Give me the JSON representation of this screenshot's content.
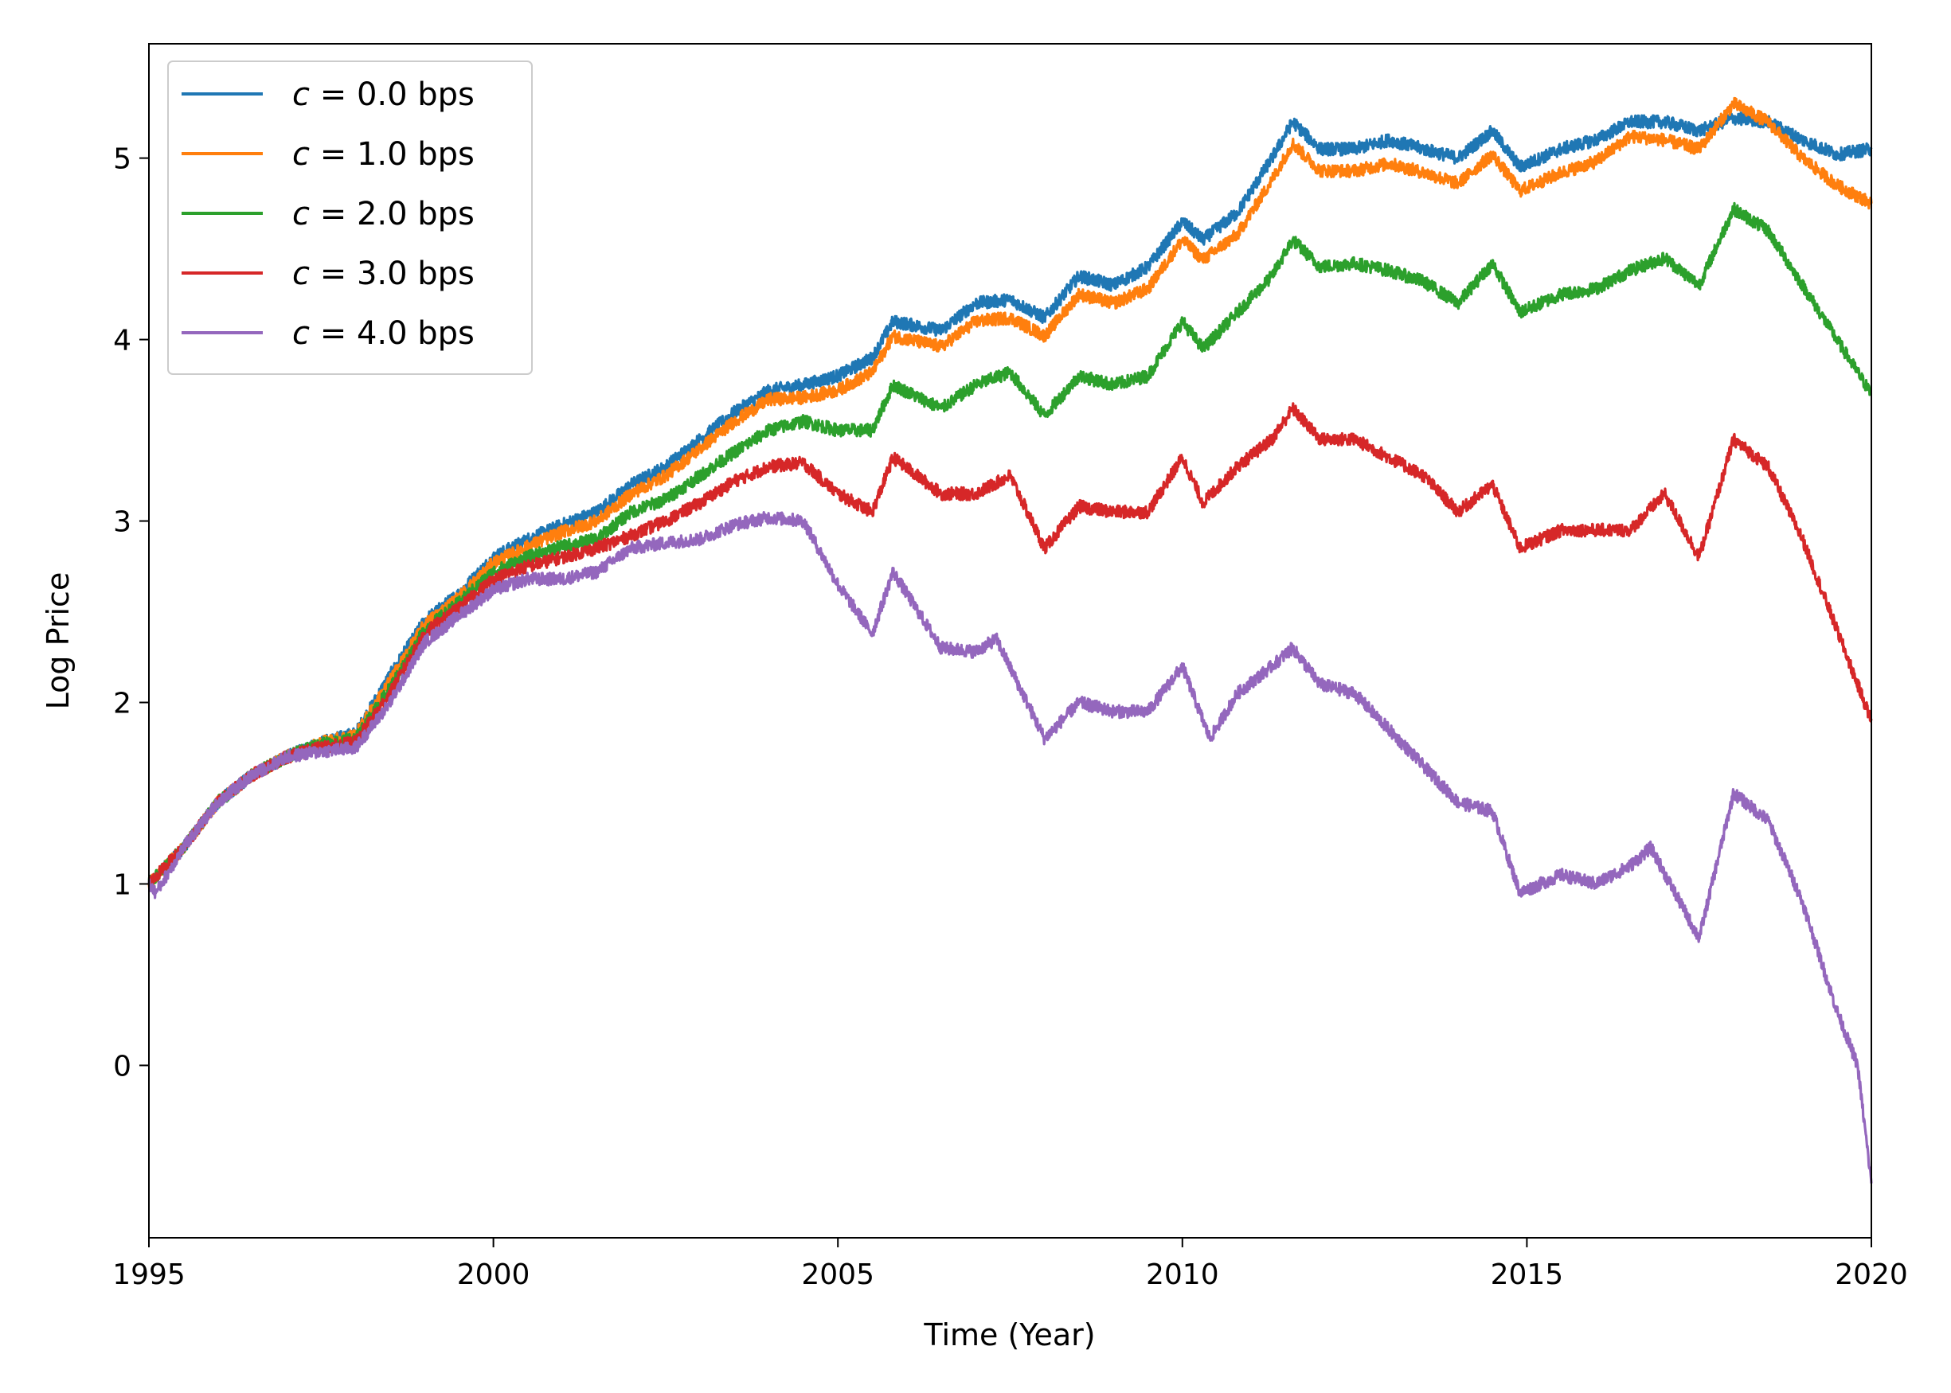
{
  "chart_data": {
    "type": "line",
    "title": "",
    "xlabel": "Time (Year)",
    "ylabel": "Log Price",
    "xlim": [
      1995,
      2020
    ],
    "ylim": [
      -0.95,
      5.63
    ],
    "xticks": [
      "1995",
      "2000",
      "2005",
      "2010",
      "2015",
      "2020"
    ],
    "yticks": [
      "0",
      "1",
      "2",
      "3",
      "4",
      "5"
    ],
    "grid": false,
    "legend_position": "top-left",
    "series": [
      {
        "name": "c = 0.0 bps",
        "var": "c",
        "value_text": "= 0.0 bps",
        "color": "#1f77b4",
        "points": [
          [
            1995.0,
            1.0
          ],
          [
            1995.5,
            1.2
          ],
          [
            1996.0,
            1.45
          ],
          [
            1996.5,
            1.6
          ],
          [
            1997.0,
            1.7
          ],
          [
            1997.5,
            1.78
          ],
          [
            1998.0,
            1.83
          ],
          [
            1998.5,
            2.15
          ],
          [
            1999.0,
            2.45
          ],
          [
            1999.5,
            2.6
          ],
          [
            2000.0,
            2.8
          ],
          [
            2000.5,
            2.9
          ],
          [
            2001.0,
            2.98
          ],
          [
            2001.5,
            3.05
          ],
          [
            2002.0,
            3.2
          ],
          [
            2002.5,
            3.3
          ],
          [
            2003.0,
            3.45
          ],
          [
            2003.5,
            3.6
          ],
          [
            2004.0,
            3.72
          ],
          [
            2004.5,
            3.75
          ],
          [
            2005.0,
            3.8
          ],
          [
            2005.5,
            3.9
          ],
          [
            2005.8,
            4.1
          ],
          [
            2006.5,
            4.05
          ],
          [
            2007.0,
            4.2
          ],
          [
            2007.5,
            4.22
          ],
          [
            2008.0,
            4.12
          ],
          [
            2008.5,
            4.35
          ],
          [
            2009.0,
            4.3
          ],
          [
            2009.5,
            4.4
          ],
          [
            2010.0,
            4.65
          ],
          [
            2010.3,
            4.55
          ],
          [
            2010.8,
            4.7
          ],
          [
            2011.3,
            5.0
          ],
          [
            2011.6,
            5.2
          ],
          [
            2012.0,
            5.05
          ],
          [
            2012.5,
            5.05
          ],
          [
            2013.0,
            5.1
          ],
          [
            2013.5,
            5.05
          ],
          [
            2014.0,
            5.0
          ],
          [
            2014.5,
            5.15
          ],
          [
            2014.9,
            4.95
          ],
          [
            2015.5,
            5.05
          ],
          [
            2016.0,
            5.1
          ],
          [
            2016.5,
            5.2
          ],
          [
            2017.0,
            5.2
          ],
          [
            2017.5,
            5.15
          ],
          [
            2018.0,
            5.22
          ],
          [
            2018.5,
            5.2
          ],
          [
            2019.0,
            5.1
          ],
          [
            2019.5,
            5.02
          ],
          [
            2020.0,
            5.05
          ]
        ]
      },
      {
        "name": "c = 1.0 bps",
        "var": "c",
        "value_text": "= 1.0 bps",
        "color": "#ff7f0e",
        "points": [
          [
            1995.0,
            1.0
          ],
          [
            1995.5,
            1.2
          ],
          [
            1996.0,
            1.45
          ],
          [
            1996.5,
            1.6
          ],
          [
            1997.0,
            1.7
          ],
          [
            1997.5,
            1.78
          ],
          [
            1998.0,
            1.82
          ],
          [
            1998.5,
            2.12
          ],
          [
            1999.0,
            2.43
          ],
          [
            1999.5,
            2.58
          ],
          [
            2000.0,
            2.77
          ],
          [
            2000.5,
            2.86
          ],
          [
            2001.0,
            2.94
          ],
          [
            2001.5,
            3.0
          ],
          [
            2002.0,
            3.15
          ],
          [
            2002.5,
            3.25
          ],
          [
            2003.0,
            3.4
          ],
          [
            2003.5,
            3.55
          ],
          [
            2004.0,
            3.67
          ],
          [
            2004.5,
            3.68
          ],
          [
            2005.0,
            3.72
          ],
          [
            2005.5,
            3.82
          ],
          [
            2005.8,
            4.02
          ],
          [
            2006.5,
            3.96
          ],
          [
            2007.0,
            4.1
          ],
          [
            2007.5,
            4.12
          ],
          [
            2008.0,
            4.02
          ],
          [
            2008.5,
            4.25
          ],
          [
            2009.0,
            4.2
          ],
          [
            2009.5,
            4.28
          ],
          [
            2010.0,
            4.55
          ],
          [
            2010.3,
            4.44
          ],
          [
            2010.8,
            4.58
          ],
          [
            2011.3,
            4.88
          ],
          [
            2011.6,
            5.08
          ],
          [
            2012.0,
            4.93
          ],
          [
            2012.5,
            4.93
          ],
          [
            2013.0,
            4.97
          ],
          [
            2013.5,
            4.92
          ],
          [
            2014.0,
            4.86
          ],
          [
            2014.5,
            5.02
          ],
          [
            2014.9,
            4.82
          ],
          [
            2015.5,
            4.92
          ],
          [
            2016.0,
            4.98
          ],
          [
            2016.5,
            5.12
          ],
          [
            2017.0,
            5.1
          ],
          [
            2017.5,
            5.05
          ],
          [
            2018.0,
            5.3
          ],
          [
            2018.5,
            5.2
          ],
          [
            2019.0,
            5.0
          ],
          [
            2019.5,
            4.85
          ],
          [
            2020.0,
            4.75
          ]
        ]
      },
      {
        "name": "c = 2.0 bps",
        "var": "c",
        "value_text": "= 2.0 bps",
        "color": "#2ca02c",
        "points": [
          [
            1995.0,
            1.0
          ],
          [
            1995.5,
            1.2
          ],
          [
            1996.0,
            1.45
          ],
          [
            1996.5,
            1.6
          ],
          [
            1997.0,
            1.7
          ],
          [
            1997.5,
            1.77
          ],
          [
            1998.0,
            1.8
          ],
          [
            1998.5,
            2.08
          ],
          [
            1999.0,
            2.4
          ],
          [
            1999.5,
            2.55
          ],
          [
            2000.0,
            2.72
          ],
          [
            2000.5,
            2.8
          ],
          [
            2001.0,
            2.86
          ],
          [
            2001.5,
            2.9
          ],
          [
            2002.0,
            3.05
          ],
          [
            2002.5,
            3.12
          ],
          [
            2003.0,
            3.25
          ],
          [
            2003.5,
            3.38
          ],
          [
            2004.0,
            3.5
          ],
          [
            2004.5,
            3.55
          ],
          [
            2005.0,
            3.5
          ],
          [
            2005.5,
            3.5
          ],
          [
            2005.8,
            3.75
          ],
          [
            2006.5,
            3.62
          ],
          [
            2007.0,
            3.75
          ],
          [
            2007.5,
            3.82
          ],
          [
            2008.0,
            3.58
          ],
          [
            2008.5,
            3.8
          ],
          [
            2009.0,
            3.75
          ],
          [
            2009.5,
            3.8
          ],
          [
            2010.0,
            4.1
          ],
          [
            2010.3,
            3.95
          ],
          [
            2010.8,
            4.15
          ],
          [
            2011.3,
            4.35
          ],
          [
            2011.6,
            4.55
          ],
          [
            2012.0,
            4.4
          ],
          [
            2012.5,
            4.42
          ],
          [
            2013.0,
            4.38
          ],
          [
            2013.5,
            4.32
          ],
          [
            2014.0,
            4.2
          ],
          [
            2014.5,
            4.42
          ],
          [
            2014.9,
            4.15
          ],
          [
            2015.5,
            4.25
          ],
          [
            2016.0,
            4.28
          ],
          [
            2016.5,
            4.38
          ],
          [
            2017.0,
            4.45
          ],
          [
            2017.5,
            4.3
          ],
          [
            2018.0,
            4.72
          ],
          [
            2018.5,
            4.6
          ],
          [
            2019.0,
            4.3
          ],
          [
            2019.5,
            4.0
          ],
          [
            2020.0,
            3.7
          ]
        ]
      },
      {
        "name": "c = 3.0 bps",
        "var": "c",
        "value_text": "= 3.0 bps",
        "color": "#d62728",
        "points": [
          [
            1995.0,
            1.0
          ],
          [
            1995.5,
            1.2
          ],
          [
            1996.0,
            1.45
          ],
          [
            1996.5,
            1.6
          ],
          [
            1997.0,
            1.7
          ],
          [
            1997.5,
            1.75
          ],
          [
            1998.0,
            1.78
          ],
          [
            1998.5,
            2.05
          ],
          [
            1999.0,
            2.38
          ],
          [
            1999.5,
            2.52
          ],
          [
            2000.0,
            2.68
          ],
          [
            2000.5,
            2.75
          ],
          [
            2001.0,
            2.8
          ],
          [
            2001.5,
            2.85
          ],
          [
            2002.0,
            2.92
          ],
          [
            2002.5,
            3.0
          ],
          [
            2003.0,
            3.1
          ],
          [
            2003.5,
            3.22
          ],
          [
            2004.0,
            3.3
          ],
          [
            2004.5,
            3.32
          ],
          [
            2005.0,
            3.15
          ],
          [
            2005.5,
            3.05
          ],
          [
            2005.8,
            3.35
          ],
          [
            2006.5,
            3.15
          ],
          [
            2007.0,
            3.15
          ],
          [
            2007.5,
            3.25
          ],
          [
            2008.0,
            2.85
          ],
          [
            2008.5,
            3.08
          ],
          [
            2009.0,
            3.05
          ],
          [
            2009.5,
            3.05
          ],
          [
            2010.0,
            3.35
          ],
          [
            2010.3,
            3.1
          ],
          [
            2010.8,
            3.3
          ],
          [
            2011.3,
            3.45
          ],
          [
            2011.6,
            3.62
          ],
          [
            2012.0,
            3.45
          ],
          [
            2012.5,
            3.45
          ],
          [
            2013.0,
            3.35
          ],
          [
            2013.5,
            3.25
          ],
          [
            2014.0,
            3.05
          ],
          [
            2014.5,
            3.2
          ],
          [
            2014.9,
            2.85
          ],
          [
            2015.5,
            2.95
          ],
          [
            2016.0,
            2.95
          ],
          [
            2016.5,
            2.95
          ],
          [
            2017.0,
            3.15
          ],
          [
            2017.5,
            2.8
          ],
          [
            2018.0,
            3.45
          ],
          [
            2018.5,
            3.3
          ],
          [
            2019.0,
            2.9
          ],
          [
            2019.5,
            2.4
          ],
          [
            2020.0,
            1.9
          ]
        ]
      },
      {
        "name": "c = 4.0 bps",
        "var": "c",
        "value_text": "= 4.0 bps",
        "color": "#9467bd",
        "points": [
          [
            1995.0,
            1.0
          ],
          [
            1995.1,
            0.95
          ],
          [
            1995.5,
            1.2
          ],
          [
            1996.0,
            1.45
          ],
          [
            1996.5,
            1.6
          ],
          [
            1997.0,
            1.7
          ],
          [
            1997.5,
            1.73
          ],
          [
            1998.0,
            1.75
          ],
          [
            1998.5,
            2.0
          ],
          [
            1999.0,
            2.33
          ],
          [
            1999.5,
            2.48
          ],
          [
            2000.0,
            2.62
          ],
          [
            2000.5,
            2.68
          ],
          [
            2001.0,
            2.68
          ],
          [
            2001.5,
            2.72
          ],
          [
            2002.0,
            2.85
          ],
          [
            2002.5,
            2.88
          ],
          [
            2003.0,
            2.9
          ],
          [
            2003.5,
            2.98
          ],
          [
            2004.0,
            3.02
          ],
          [
            2004.5,
            3.0
          ],
          [
            2005.0,
            2.65
          ],
          [
            2005.5,
            2.38
          ],
          [
            2005.8,
            2.72
          ],
          [
            2006.5,
            2.3
          ],
          [
            2007.0,
            2.28
          ],
          [
            2007.3,
            2.35
          ],
          [
            2008.0,
            1.8
          ],
          [
            2008.5,
            2.0
          ],
          [
            2009.0,
            1.95
          ],
          [
            2009.5,
            1.95
          ],
          [
            2010.0,
            2.2
          ],
          [
            2010.4,
            1.8
          ],
          [
            2010.8,
            2.05
          ],
          [
            2011.3,
            2.2
          ],
          [
            2011.6,
            2.3
          ],
          [
            2012.0,
            2.1
          ],
          [
            2012.5,
            2.05
          ],
          [
            2013.0,
            1.85
          ],
          [
            2013.5,
            1.65
          ],
          [
            2014.0,
            1.45
          ],
          [
            2014.5,
            1.4
          ],
          [
            2014.9,
            0.95
          ],
          [
            2015.5,
            1.05
          ],
          [
            2016.0,
            1.0
          ],
          [
            2016.5,
            1.1
          ],
          [
            2016.8,
            1.2
          ],
          [
            2017.5,
            0.7
          ],
          [
            2018.0,
            1.5
          ],
          [
            2018.5,
            1.35
          ],
          [
            2019.0,
            0.9
          ],
          [
            2019.5,
            0.3
          ],
          [
            2019.8,
            0.0
          ],
          [
            2020.0,
            -0.65
          ]
        ]
      }
    ]
  }
}
